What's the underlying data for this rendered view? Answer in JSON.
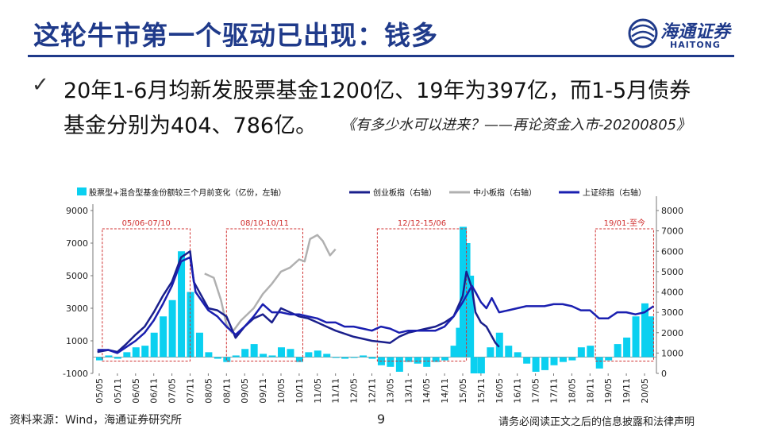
{
  "slide": {
    "title": "这轮牛市第一个驱动已出现：钱多",
    "logo_cn": "海通证券",
    "logo_en": "HAITONG",
    "bullet_check": "✓",
    "bullet_line1": "20年1-6月均新发股票基金1200亿、19年为397亿，而1-5月债券",
    "bullet_line2": "基金分别为404、786亿。",
    "bullet_source": "《有多少水可以进来？——再论资金入市-20200805》",
    "footer_left": "资料来源：Wind，海通证券研究所",
    "page_number": "9",
    "footer_right": "请务必阅读正文之后的信息披露和法律声明"
  },
  "chart_data": {
    "type": "bar+line",
    "colors": {
      "bar": "#0ad0f0",
      "gem": "#1a1f8c",
      "sme": "#b0b0b0",
      "sh": "#1a1fb0",
      "box": "#d03030"
    },
    "legend": [
      {
        "key": "bar",
        "label": "股票型+混合型基金份额较三个月前变化（亿份，左轴）"
      },
      {
        "key": "gem",
        "label": "创业板指（右轴）"
      },
      {
        "key": "sme",
        "label": "中小板指（右轴）"
      },
      {
        "key": "sh",
        "label": "上证综指（右轴）"
      }
    ],
    "y_left": {
      "min": -1000,
      "max": 9000,
      "ticks": [
        -1000,
        1000,
        3000,
        5000,
        7000,
        9000
      ]
    },
    "y_right": {
      "min": 0,
      "max": 8000,
      "ticks": [
        0,
        1000,
        2000,
        3000,
        4000,
        5000,
        6000,
        7000,
        8000
      ]
    },
    "x_ticks": [
      "05/05",
      "05/11",
      "06/05",
      "06/11",
      "07/05",
      "07/11",
      "08/05",
      "08/11",
      "09/05",
      "09/11",
      "10/05",
      "10/11",
      "11/05",
      "11/11",
      "12/05",
      "12/11",
      "13/05",
      "13/11",
      "14/05",
      "14/11",
      "15/05",
      "15/11",
      "16/05",
      "16/11",
      "17/05",
      "17/11",
      "18/05",
      "18/11",
      "19/05",
      "19/11",
      "20/05"
    ],
    "periods": [
      {
        "label": "05/06-07/10",
        "start": 0.17,
        "end": 5.0
      },
      {
        "label": "08/10-10/11",
        "start": 7.0,
        "end": 11.2
      },
      {
        "label": "12/12-15/06",
        "start": 15.3,
        "end": 20.2
      },
      {
        "label": "19/01-至今",
        "start": 27.3,
        "end": 30.5
      }
    ],
    "bar_values": [
      [
        0,
        -200
      ],
      [
        0.5,
        100
      ],
      [
        1,
        -100
      ],
      [
        1.5,
        300
      ],
      [
        2,
        600
      ],
      [
        2.5,
        700
      ],
      [
        3,
        1500
      ],
      [
        3.5,
        2500
      ],
      [
        4,
        3500
      ],
      [
        4.5,
        6500
      ],
      [
        5,
        4000
      ],
      [
        5.5,
        1500
      ],
      [
        6,
        300
      ],
      [
        6.5,
        -100
      ],
      [
        7,
        -300
      ],
      [
        7.5,
        100
      ],
      [
        8,
        500
      ],
      [
        8.5,
        800
      ],
      [
        9,
        200
      ],
      [
        9.5,
        100
      ],
      [
        10,
        600
      ],
      [
        10.5,
        500
      ],
      [
        11,
        -300
      ],
      [
        11.5,
        300
      ],
      [
        12,
        400
      ],
      [
        12.5,
        200
      ],
      [
        13,
        0
      ],
      [
        13.5,
        -100
      ],
      [
        14,
        0
      ],
      [
        14.5,
        100
      ],
      [
        15,
        -100
      ],
      [
        15.5,
        -500
      ],
      [
        16,
        -600
      ],
      [
        16.5,
        -900
      ],
      [
        17,
        -300
      ],
      [
        17.5,
        -400
      ],
      [
        18,
        -600
      ],
      [
        18.5,
        -300
      ],
      [
        19,
        -200
      ],
      [
        19.5,
        700
      ],
      [
        19.8,
        1800
      ],
      [
        20,
        8000
      ],
      [
        20.2,
        7000
      ],
      [
        20.4,
        5000
      ],
      [
        20.6,
        -1000
      ],
      [
        21,
        -1000
      ],
      [
        21.5,
        600
      ],
      [
        22,
        1500
      ],
      [
        22.5,
        700
      ],
      [
        23,
        300
      ],
      [
        23.5,
        -400
      ],
      [
        24,
        -900
      ],
      [
        24.5,
        -800
      ],
      [
        25,
        -500
      ],
      [
        25.5,
        -300
      ],
      [
        26,
        -200
      ],
      [
        26.5,
        600
      ],
      [
        27,
        700
      ],
      [
        27.5,
        -700
      ],
      [
        28,
        -200
      ],
      [
        28.5,
        800
      ],
      [
        29,
        1200
      ],
      [
        29.5,
        2500
      ],
      [
        30,
        3300
      ],
      [
        30.3,
        2500
      ]
    ],
    "series_gem": [
      [
        -0.1,
        1050
      ],
      [
        0.5,
        1150
      ],
      [
        1,
        1050
      ],
      [
        1.5,
        1450
      ],
      [
        2,
        1900
      ],
      [
        2.5,
        2300
      ],
      [
        3,
        3000
      ],
      [
        3.5,
        3800
      ],
      [
        4,
        4500
      ],
      [
        4.5,
        5700
      ],
      [
        5,
        6000
      ],
      [
        5.2,
        4500
      ],
      [
        6,
        3200
      ],
      [
        6.5,
        3100
      ],
      [
        7,
        2800
      ],
      [
        7.5,
        1750
      ],
      [
        8,
        2300
      ],
      [
        8.5,
        2700
      ],
      [
        9,
        2900
      ],
      [
        9.5,
        2500
      ],
      [
        10,
        3200
      ],
      [
        10.5,
        3000
      ],
      [
        11,
        2800
      ],
      [
        11.5,
        2700
      ],
      [
        12,
        2500
      ],
      [
        12.5,
        2300
      ],
      [
        13,
        2100
      ],
      [
        14,
        1800
      ],
      [
        14.5,
        1700
      ],
      [
        15,
        1600
      ],
      [
        15.5,
        1550
      ],
      [
        16,
        1500
      ],
      [
        16.5,
        1800
      ],
      [
        17,
        2000
      ],
      [
        17.5,
        2100
      ],
      [
        18,
        2200
      ],
      [
        18.5,
        2300
      ],
      [
        19,
        2500
      ],
      [
        19.5,
        2800
      ],
      [
        20,
        3800
      ],
      [
        20.2,
        5000
      ],
      [
        20.5,
        4200
      ],
      [
        20.7,
        3000
      ],
      [
        21,
        2500
      ],
      [
        21.3,
        2300
      ],
      [
        21.8,
        1500
      ],
      [
        22,
        1300
      ]
    ],
    "series_sme": [
      [
        5.8,
        4900
      ],
      [
        6.3,
        4700
      ],
      [
        6.7,
        3600
      ],
      [
        7,
        2400
      ],
      [
        7.3,
        2000
      ],
      [
        7.8,
        2600
      ],
      [
        8.5,
        3200
      ],
      [
        9,
        3900
      ],
      [
        9.5,
        4400
      ],
      [
        10,
        5000
      ],
      [
        10.5,
        5200
      ],
      [
        11,
        5600
      ],
      [
        11.3,
        5500
      ],
      [
        11.6,
        6600
      ],
      [
        12,
        6800
      ],
      [
        12.3,
        6500
      ],
      [
        12.7,
        5800
      ],
      [
        13,
        6100
      ]
    ],
    "series_sh": [
      [
        -0.1,
        1150
      ],
      [
        0.5,
        1150
      ],
      [
        1,
        1000
      ],
      [
        1.5,
        1300
      ],
      [
        2,
        1600
      ],
      [
        2.5,
        2000
      ],
      [
        3,
        2600
      ],
      [
        3.5,
        3400
      ],
      [
        4,
        4300
      ],
      [
        4.5,
        5500
      ],
      [
        5,
        5700
      ],
      [
        5.3,
        4000
      ],
      [
        6,
        3100
      ],
      [
        6.5,
        2800
      ],
      [
        7,
        2300
      ],
      [
        7.5,
        1900
      ],
      [
        8,
        2300
      ],
      [
        8.5,
        2800
      ],
      [
        9,
        3400
      ],
      [
        9.5,
        3000
      ],
      [
        10,
        3000
      ],
      [
        10.5,
        2900
      ],
      [
        11,
        2900
      ],
      [
        11.5,
        2800
      ],
      [
        12,
        2700
      ],
      [
        12.5,
        2500
      ],
      [
        13,
        2500
      ],
      [
        13.5,
        2300
      ],
      [
        14,
        2300
      ],
      [
        14.5,
        2200
      ],
      [
        15,
        2100
      ],
      [
        15.5,
        2300
      ],
      [
        16,
        2200
      ],
      [
        16.5,
        2000
      ],
      [
        17,
        2100
      ],
      [
        17.5,
        2100
      ],
      [
        18,
        2100
      ],
      [
        18.5,
        2100
      ],
      [
        19,
        2300
      ],
      [
        19.5,
        2800
      ],
      [
        20,
        3500
      ],
      [
        20.5,
        4300
      ],
      [
        20.7,
        4000
      ],
      [
        21,
        3500
      ],
      [
        21.3,
        3200
      ],
      [
        21.6,
        3700
      ],
      [
        22,
        3000
      ],
      [
        22.5,
        3100
      ],
      [
        23,
        3200
      ],
      [
        23.5,
        3300
      ],
      [
        24,
        3300
      ],
      [
        24.5,
        3300
      ],
      [
        25,
        3400
      ],
      [
        25.5,
        3400
      ],
      [
        26,
        3300
      ],
      [
        26.5,
        3100
      ],
      [
        27,
        3100
      ],
      [
        27.5,
        2700
      ],
      [
        28,
        2700
      ],
      [
        28.5,
        3000
      ],
      [
        29,
        3000
      ],
      [
        29.5,
        2900
      ],
      [
        30,
        3000
      ],
      [
        30.5,
        3300
      ]
    ]
  }
}
